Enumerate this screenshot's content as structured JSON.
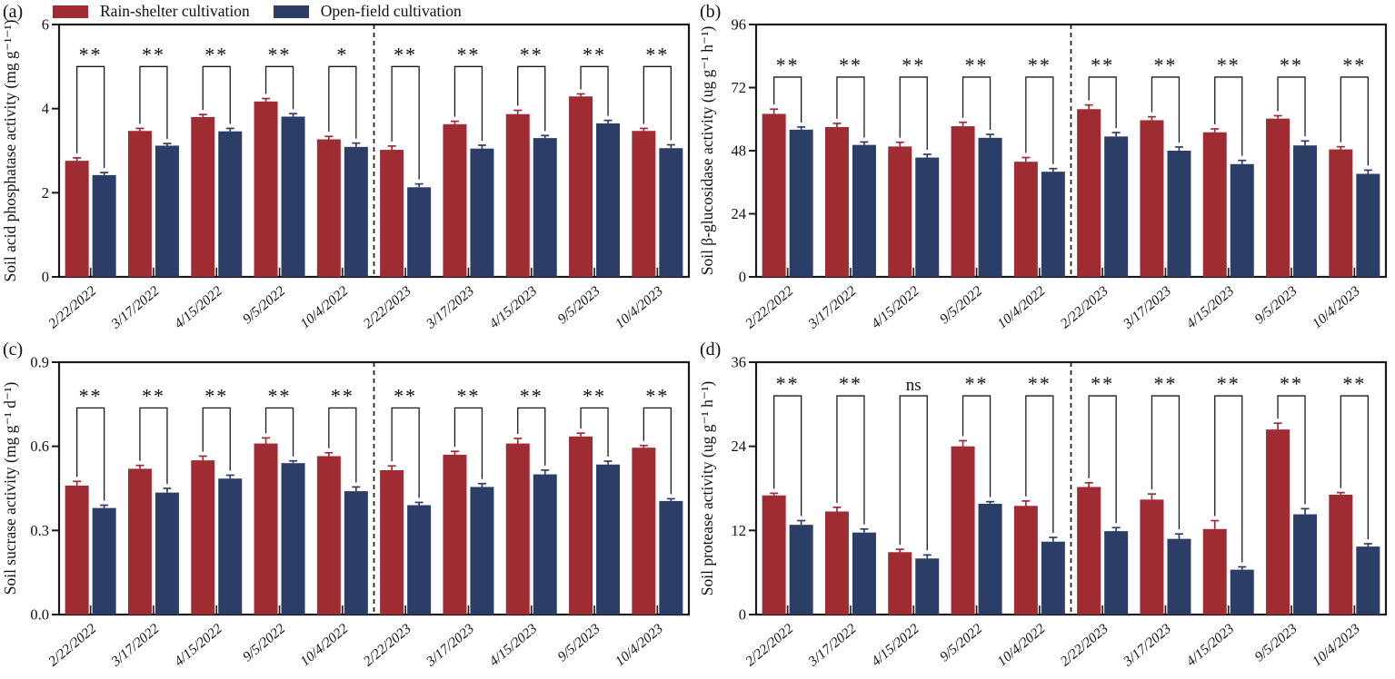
{
  "figure": {
    "panel_labels": {
      "a": "(a)",
      "b": "(b)",
      "c": "(c)",
      "d": "(d)"
    },
    "legend": {
      "position": "top-left-of-panel-a",
      "items": [
        {
          "key": "rain_shelter",
          "label": "Rain-shelter cultivation",
          "color": "#9f2b33"
        },
        {
          "key": "open_field",
          "label": "Open-field cultivation",
          "color": "#2c3d68"
        }
      ]
    }
  },
  "chart_data": [
    {
      "type": "bar",
      "panel": "a",
      "panel_label": "(a)",
      "title": "",
      "xlabel": "",
      "ylabel": "Soil acid phosphatase activity (mg g⁻¹⁻¹)",
      "ylim": [
        0,
        6
      ],
      "yticks": [
        0,
        2,
        4,
        6
      ],
      "ytick_labels": [
        "0",
        "2",
        "4",
        "6"
      ],
      "grid": false,
      "legend_position": "top-left",
      "bracket_y": 5.0,
      "divider_after_index": 4,
      "categories": [
        "2/22/2022",
        "3/17/2022",
        "4/15/2022",
        "9/5/2022",
        "10/4/2022",
        "2/22/2023",
        "3/17/2023",
        "4/15/2023",
        "9/5/2023",
        "10/4/2023"
      ],
      "series": [
        {
          "key": "rain_shelter",
          "name": "Rain-shelter cultivation",
          "color": "#9f2b33",
          "values": [
            2.76,
            3.47,
            3.8,
            4.17,
            3.27,
            3.02,
            3.63,
            3.87,
            4.29,
            3.47
          ],
          "errors": [
            0.07,
            0.06,
            0.06,
            0.07,
            0.07,
            0.09,
            0.07,
            0.09,
            0.06,
            0.06
          ]
        },
        {
          "key": "open_field",
          "name": "Open-field cultivation",
          "color": "#2c3d68",
          "values": [
            2.42,
            3.12,
            3.46,
            3.81,
            3.09,
            2.13,
            3.05,
            3.3,
            3.65,
            3.06
          ],
          "errors": [
            0.06,
            0.05,
            0.07,
            0.07,
            0.09,
            0.08,
            0.08,
            0.06,
            0.07,
            0.08
          ]
        }
      ],
      "significance": [
        "**",
        "**",
        "**",
        "**",
        "*",
        "**",
        "**",
        "**",
        "**",
        "**"
      ]
    },
    {
      "type": "bar",
      "panel": "b",
      "panel_label": "(b)",
      "title": "",
      "xlabel": "",
      "ylabel": "Soil β-glucosidase activity (ug g⁻¹ h⁻¹)",
      "ylim": [
        0,
        96
      ],
      "yticks": [
        0,
        24,
        48,
        72,
        96
      ],
      "ytick_labels": [
        "0",
        "24",
        "48",
        "72",
        "96"
      ],
      "grid": false,
      "legend_position": "none",
      "bracket_y": 76,
      "divider_after_index": 4,
      "categories": [
        "2/22/2022",
        "3/17/2022",
        "4/15/2022",
        "9/5/2022",
        "10/4/2022",
        "2/22/2023",
        "3/17/2023",
        "4/15/2023",
        "9/5/2023",
        "10/4/2023"
      ],
      "series": [
        {
          "key": "rain_shelter",
          "name": "Rain-shelter cultivation",
          "color": "#9f2b33",
          "values": [
            62.0,
            57.0,
            49.6,
            57.3,
            43.8,
            63.8,
            59.6,
            55.0,
            60.2,
            48.5
          ],
          "errors": [
            1.8,
            1.4,
            1.6,
            1.5,
            1.6,
            1.6,
            1.3,
            1.3,
            1.1,
            1.0
          ]
        },
        {
          "key": "open_field",
          "name": "Open-field cultivation",
          "color": "#2c3d68",
          "values": [
            56.0,
            50.2,
            45.4,
            52.9,
            40.0,
            53.4,
            48.0,
            42.9,
            50.0,
            39.2
          ],
          "errors": [
            1.0,
            1.1,
            1.2,
            1.3,
            1.2,
            1.5,
            1.4,
            1.4,
            1.7,
            1.4
          ]
        }
      ],
      "significance": [
        "**",
        "**",
        "**",
        "**",
        "**",
        "**",
        "**",
        "**",
        "**",
        "**"
      ]
    },
    {
      "type": "bar",
      "panel": "c",
      "panel_label": "(c)",
      "title": "",
      "xlabel": "",
      "ylabel": "Soil sucrase activity (mg g⁻¹ d⁻¹)",
      "ylim": [
        0,
        0.9
      ],
      "yticks": [
        0,
        0.3,
        0.6,
        0.9
      ],
      "ytick_labels": [
        "0.0",
        "0.3",
        "0.6",
        "0.9"
      ],
      "grid": false,
      "legend_position": "none",
      "bracket_y": 0.737,
      "divider_after_index": 4,
      "categories": [
        "2/22/2022",
        "3/17/2022",
        "4/15/2022",
        "9/5/2022",
        "10/4/2022",
        "2/22/2023",
        "3/17/2023",
        "4/15/2023",
        "9/5/2023",
        "10/4/2023"
      ],
      "series": [
        {
          "key": "rain_shelter",
          "name": "Rain-shelter cultivation",
          "color": "#9f2b33",
          "values": [
            0.46,
            0.52,
            0.55,
            0.61,
            0.565,
            0.515,
            0.57,
            0.61,
            0.635,
            0.595
          ],
          "errors": [
            0.015,
            0.012,
            0.015,
            0.02,
            0.012,
            0.015,
            0.012,
            0.018,
            0.012,
            0.008
          ]
        },
        {
          "key": "open_field",
          "name": "Open-field cultivation",
          "color": "#2c3d68",
          "values": [
            0.38,
            0.435,
            0.485,
            0.54,
            0.44,
            0.39,
            0.455,
            0.5,
            0.535,
            0.405
          ],
          "errors": [
            0.01,
            0.015,
            0.012,
            0.008,
            0.015,
            0.01,
            0.012,
            0.015,
            0.012,
            0.008
          ]
        }
      ],
      "significance": [
        "**",
        "**",
        "**",
        "**",
        "**",
        "**",
        "**",
        "**",
        "**",
        "**"
      ]
    },
    {
      "type": "bar",
      "panel": "d",
      "panel_label": "(d)",
      "title": "",
      "xlabel": "",
      "ylabel": "Soil protease activity (ug g⁻¹ h⁻¹)",
      "ylim": [
        0,
        36
      ],
      "yticks": [
        0,
        12,
        24,
        36
      ],
      "ytick_labels": [
        "0",
        "12",
        "24",
        "36"
      ],
      "grid": false,
      "legend_position": "none",
      "bracket_y": 31.2,
      "divider_after_index": 4,
      "categories": [
        "2/22/2022",
        "3/17/2022",
        "4/15/2022",
        "9/5/2022",
        "10/4/2022",
        "2/22/2023",
        "3/17/2023",
        "4/15/2023",
        "9/5/2023",
        "10/4/2023"
      ],
      "series": [
        {
          "key": "rain_shelter",
          "name": "Rain-shelter cultivation",
          "color": "#9f2b33",
          "values": [
            17.0,
            14.7,
            8.9,
            24.0,
            15.5,
            18.2,
            16.4,
            12.2,
            26.4,
            17.1
          ],
          "errors": [
            0.3,
            0.6,
            0.4,
            0.8,
            0.7,
            0.6,
            0.8,
            1.2,
            0.9,
            0.3
          ]
        },
        {
          "key": "open_field",
          "name": "Open-field cultivation",
          "color": "#2c3d68",
          "values": [
            12.8,
            11.7,
            8.0,
            15.8,
            10.4,
            11.9,
            10.8,
            6.4,
            14.3,
            9.7
          ],
          "errors": [
            0.6,
            0.5,
            0.5,
            0.3,
            0.6,
            0.5,
            0.7,
            0.4,
            0.8,
            0.4
          ]
        }
      ],
      "significance": [
        "**",
        "**",
        "ns",
        "**",
        "**",
        "**",
        "**",
        "**",
        "**",
        "**"
      ]
    }
  ]
}
